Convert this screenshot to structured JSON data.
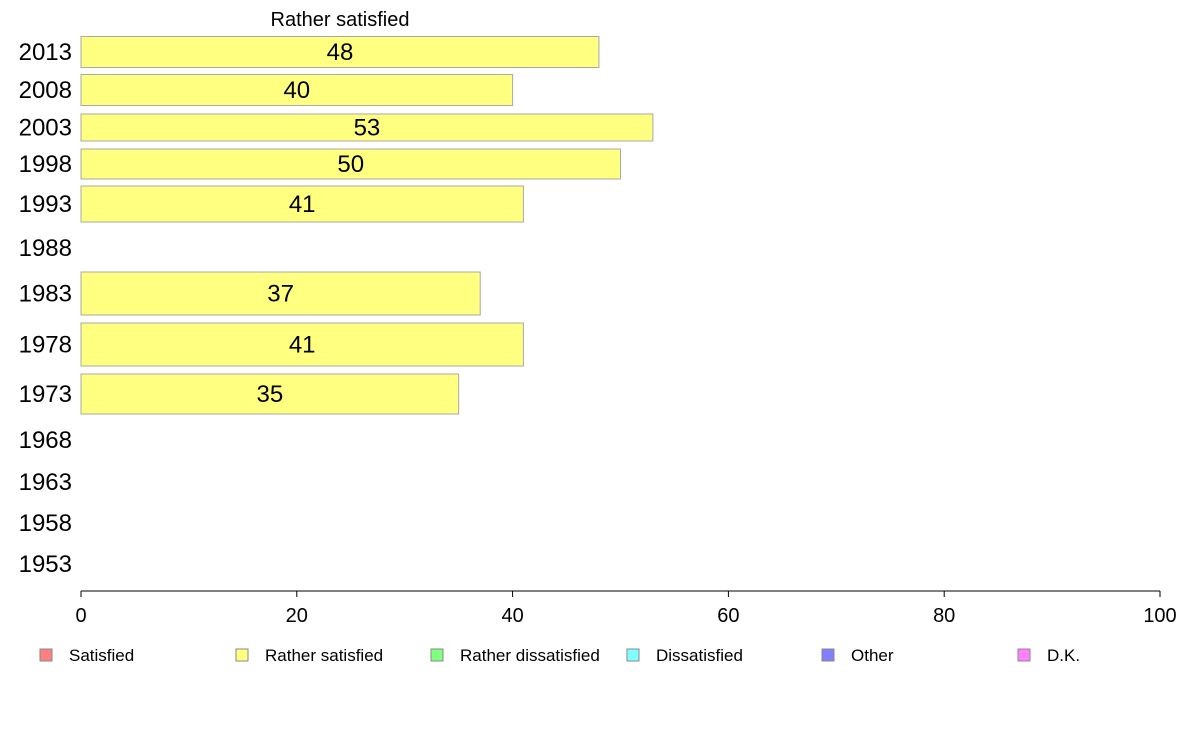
{
  "chart_data": {
    "type": "bar",
    "orientation": "horizontal",
    "title": "Rather satisfied",
    "xlabel": "",
    "ylabel": "",
    "xlim": [
      0,
      100
    ],
    "x_ticks": [
      "0",
      "20",
      "40",
      "60",
      "80",
      "100"
    ],
    "categories": [
      "2013",
      "2008",
      "2003",
      "1998",
      "1993",
      "1988",
      "1983",
      "1978",
      "1973",
      "1968",
      "1963",
      "1958",
      "1953"
    ],
    "series": [
      {
        "name": "Rather satisfied",
        "color": "#ffff80",
        "values": [
          48,
          40,
          53,
          50,
          41,
          null,
          37,
          41,
          35,
          null,
          null,
          null,
          null
        ]
      }
    ],
    "legend": {
      "placement": "bottom",
      "items": [
        {
          "label": "Satisfied",
          "color": "#ff8080"
        },
        {
          "label": "Rather satisfied",
          "color": "#ffff80"
        },
        {
          "label": "Rather dissatisfied",
          "color": "#80ff80"
        },
        {
          "label": "Dissatisfied",
          "color": "#80ffff"
        },
        {
          "label": "Other",
          "color": "#8080ff"
        },
        {
          "label": "D.K.",
          "color": "#ff80ff"
        }
      ]
    },
    "grid": false
  }
}
